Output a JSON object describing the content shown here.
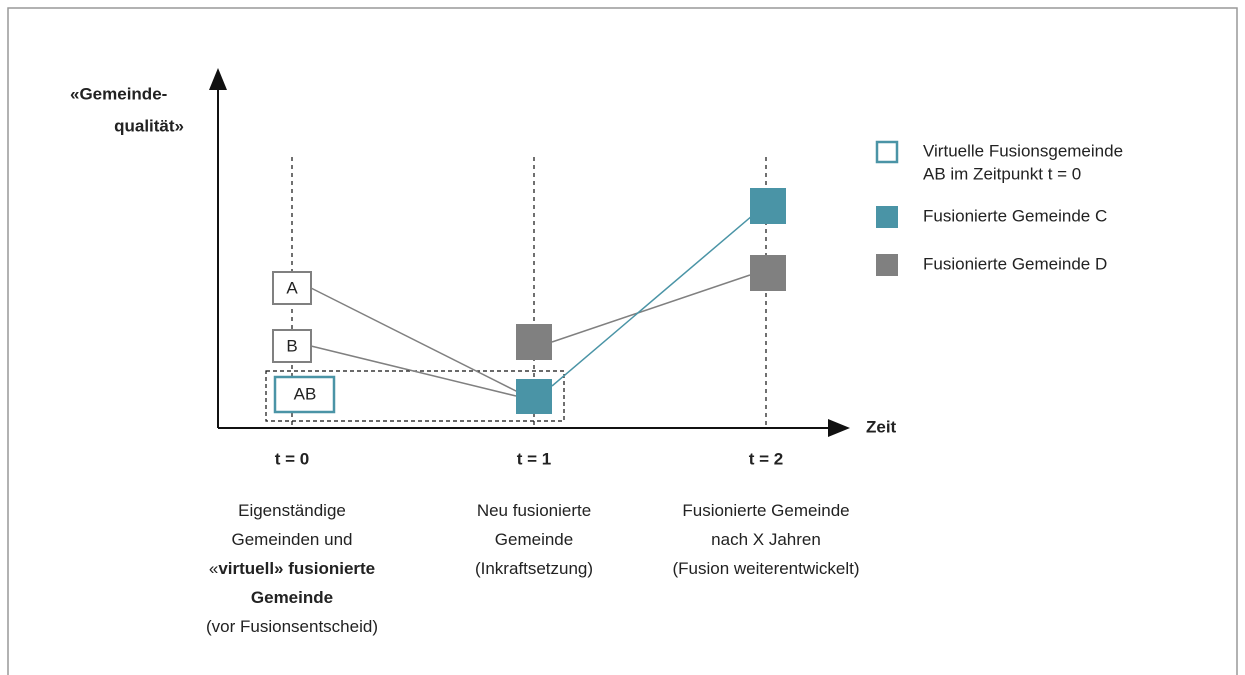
{
  "y_axis_label": [
    "«Gemeinde-",
    "qualität»"
  ],
  "x_axis_label": "Zeit",
  "columns": [
    {
      "tick": "t = 0",
      "description": [
        [
          {
            "text": "Eigenständige",
            "bold": false
          }
        ],
        [
          {
            "text": "Gemeinden und",
            "bold": false
          }
        ],
        [
          {
            "text": "«",
            "bold": false
          },
          {
            "text": "virtuell» fusionierte",
            "bold": true
          }
        ],
        [
          {
            "text": "Gemeinde",
            "bold": true
          }
        ],
        [
          {
            "text": "(vor Fusionsentscheid)",
            "bold": false
          }
        ]
      ]
    },
    {
      "tick": "t = 1",
      "description": [
        [
          {
            "text": "Neu fusionierte",
            "bold": false
          }
        ],
        [
          {
            "text": "Gemeinde",
            "bold": false
          }
        ],
        [
          {
            "text": "(Inkraftsetzung)",
            "bold": false
          }
        ]
      ]
    },
    {
      "tick": "t = 2",
      "description": [
        [
          {
            "text": "Fusionierte Gemeinde",
            "bold": false
          }
        ],
        [
          {
            "text": "nach X Jahren",
            "bold": false
          }
        ],
        [
          {
            "text": "(Fusion weiterentwickelt)",
            "bold": false
          }
        ]
      ]
    }
  ],
  "nodes": [
    {
      "label": "A"
    },
    {
      "label": "B"
    },
    {
      "label": "AB"
    }
  ],
  "legend": [
    {
      "lines": [
        "Virtuelle Fusionsgemeinde",
        "AB im Zeitpunkt t = 0"
      ]
    },
    {
      "lines": [
        "Fusionierte Gemeinde C"
      ]
    },
    {
      "lines": [
        "Fusionierte Gemeinde D"
      ]
    }
  ]
}
